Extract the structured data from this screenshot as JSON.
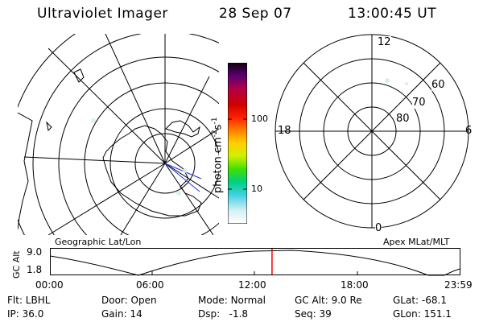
{
  "header": {
    "title": "Ultraviolet Imager",
    "date": "28 Sep 07",
    "time": "13:00:45 UT"
  },
  "left_map": {
    "caption": "Geographic Lat/Lon"
  },
  "right_map": {
    "caption": "Apex MLat/MLT",
    "mlt_labels": {
      "top": "12",
      "left": "18",
      "right": "6",
      "bottom": "0"
    },
    "lat_labels": [
      "60",
      "70",
      "80"
    ]
  },
  "colorbar": {
    "label": "photon cm",
    "label_sup1": "-2",
    "label_mid": "s",
    "label_sup2": "-1",
    "ticks": [
      "100",
      "10"
    ],
    "scale": "log"
  },
  "timeline": {
    "axis_label": "GC Alt",
    "y_ticks": [
      "9.0",
      "1.8"
    ],
    "x_ticks": [
      "00:00",
      "06:00",
      "12:00",
      "18:00",
      "23:59"
    ],
    "current_time_hours": 13.01
  },
  "footer": {
    "col1": [
      "Flt: LBHL",
      "IP: 36.0"
    ],
    "col2_line1": {
      "label": "Door:",
      "value": "Open"
    },
    "col2_line2": {
      "label": "Gain:",
      "value": "14"
    },
    "col3_line1": {
      "label": "Mode:",
      "value": "Normal"
    },
    "col3_line2": {
      "label": "Dsp:",
      "value": "-1.8"
    },
    "col4": [
      "GC Alt: 9.0 Re",
      "Seq: 39"
    ],
    "col5": [
      "GLat: -68.1",
      "GLon: 151.1"
    ]
  },
  "colors": {
    "time_marker": "#ff0000",
    "line": "#000000",
    "aurora_speckle": "#d6efef"
  }
}
